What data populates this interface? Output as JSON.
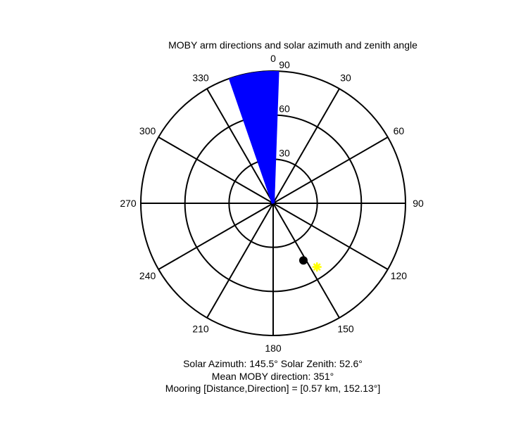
{
  "chart_data": {
    "type": "polar",
    "title": "MOBY arm directions and solar azimuth and zenith angle",
    "orientation": "clockwise, 0 at top",
    "theta_ticks": [
      "0",
      "30",
      "60",
      "90",
      "120",
      "150",
      "180",
      "210",
      "240",
      "270",
      "300",
      "330"
    ],
    "theta_values": [
      0,
      30,
      60,
      90,
      120,
      150,
      180,
      210,
      240,
      270,
      300,
      330
    ],
    "r_ticks": [
      "30",
      "60",
      "90"
    ],
    "r_values": [
      30,
      60,
      90
    ],
    "rlim": [
      0,
      90
    ],
    "arm_directions": {
      "color": "#0000ff",
      "radius": 90,
      "directions_deg": [
        341,
        341.5,
        342,
        342.5,
        343,
        343.5,
        344,
        344.5,
        345,
        345.5,
        346,
        346.5,
        347,
        347.5,
        348,
        348.5,
        349,
        349.5,
        350,
        350.5,
        351,
        351.5,
        352,
        352.5,
        353,
        353.5,
        354,
        354.5,
        355,
        355.5,
        356,
        356.5,
        357,
        357.5,
        358,
        358.5,
        359,
        359.5,
        0.5,
        1,
        1.5,
        2
      ]
    },
    "mooring": {
      "direction_deg": 152.13,
      "radius": 44,
      "color": "#000000"
    },
    "sun": {
      "azimuth_deg": 145.5,
      "zenith_deg": 52.6,
      "color": "#ffff00"
    }
  },
  "captions": {
    "line1": "Solar Azimuth: 145.5°   Solar Zenith: 52.6°",
    "line2": "Mean MOBY direction: 351°",
    "line3": "Mooring [Distance,Direction] = [0.57 km, 152.13°]"
  }
}
